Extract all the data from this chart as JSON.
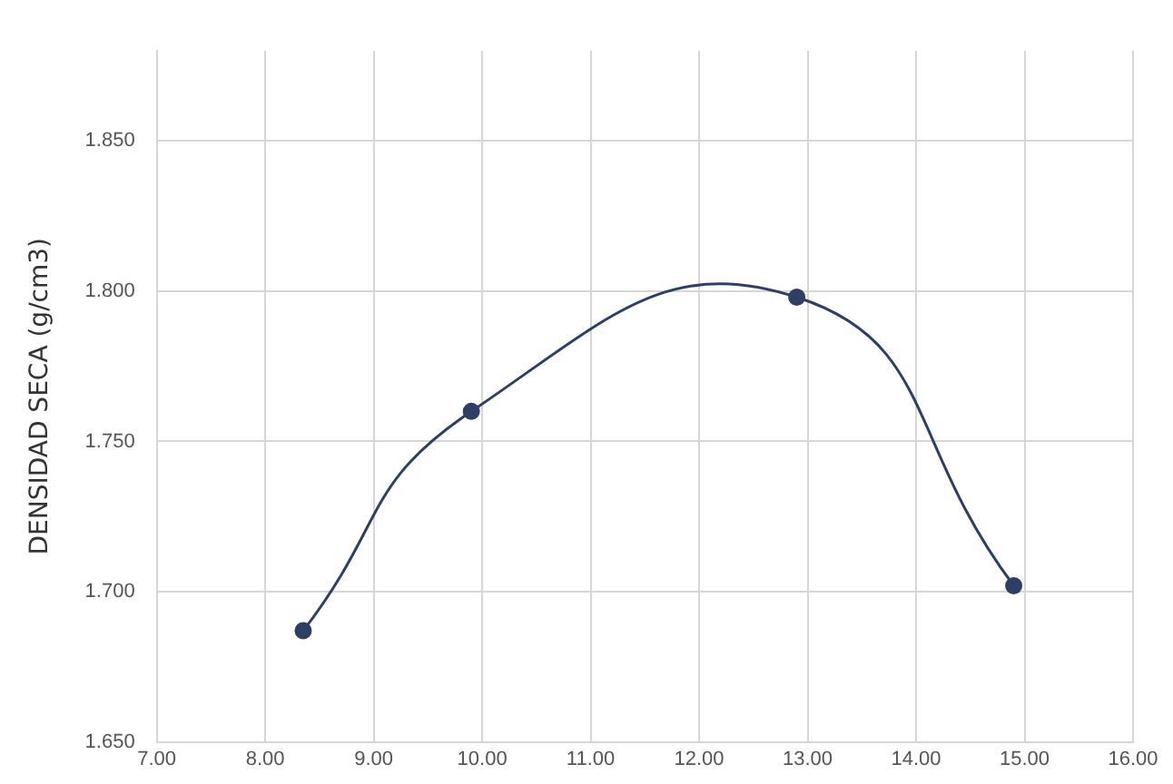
{
  "chart_data": {
    "type": "line",
    "ylabel": "DENSIDAD SECA (g/cm3)",
    "series": [
      {
        "color": "#2e3f66",
        "x": [
          8.35,
          9.9,
          12.9,
          14.9
        ],
        "values": [
          1.687,
          1.76,
          1.798,
          1.702
        ]
      }
    ],
    "xlim": [
      7,
      16
    ],
    "xticks": [
      {
        "value": 7,
        "label": "7.00"
      },
      {
        "value": 8,
        "label": "8.00"
      },
      {
        "value": 9,
        "label": "9.00"
      },
      {
        "value": 10,
        "label": "10.00"
      },
      {
        "value": 11,
        "label": "11.00"
      },
      {
        "value": 12,
        "label": "12.00"
      },
      {
        "value": 13,
        "label": "13.00"
      },
      {
        "value": 14,
        "label": "14.00"
      },
      {
        "value": 15,
        "label": "15.00"
      },
      {
        "value": 16,
        "label": "16.00"
      }
    ],
    "ylim": [
      1.65,
      1.88
    ],
    "yticks": [
      {
        "value": 1.65,
        "label": "1.650"
      },
      {
        "value": 1.7,
        "label": "1.700"
      },
      {
        "value": 1.75,
        "label": "1.750"
      },
      {
        "value": 1.8,
        "label": "1.800"
      },
      {
        "value": 1.85,
        "label": "1.850"
      }
    ],
    "grid": true,
    "marker": "circle",
    "line_style": "solid",
    "legend": false
  }
}
